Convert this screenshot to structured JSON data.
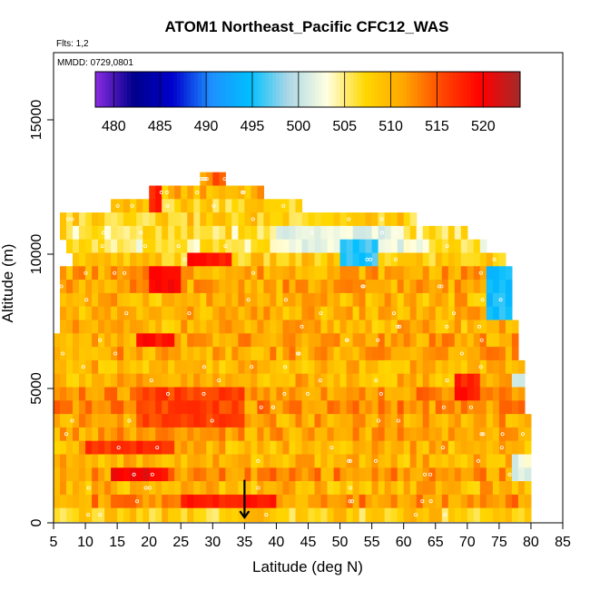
{
  "chart_data": {
    "type": "heatmap",
    "title": "ATOM1 Northeast_Pacific CFC12_WAS",
    "flights_label": "Flts: 1,2",
    "dates_label": "MMDD: 0729,0801",
    "xlabel": "Latitude (deg N)",
    "ylabel": "Altitude (m)",
    "xlim": [
      5,
      85
    ],
    "ylim": [
      0,
      17500
    ],
    "x_ticks": [
      5,
      10,
      15,
      20,
      25,
      30,
      35,
      40,
      45,
      50,
      55,
      60,
      65,
      70,
      75,
      80,
      85
    ],
    "y_ticks": [
      0,
      5000,
      10000,
      15000
    ],
    "colorbar": {
      "ticks": [
        480,
        485,
        490,
        495,
        500,
        505,
        510,
        515,
        520
      ],
      "range": [
        478,
        524
      ],
      "colors": [
        "#8a2be2",
        "#00008b",
        "#0000cd",
        "#1e90ff",
        "#00bfff",
        "#add8e6",
        "#ffffe0",
        "#ffd700",
        "#ffa500",
        "#ff4500",
        "#ff0000",
        "#a52a2a"
      ]
    },
    "marker": {
      "latitude": 35,
      "altitude": 900
    },
    "rows": [
      {
        "alt": 12800,
        "lat": [
          28,
          32
        ],
        "value": 513
      },
      {
        "alt": 12300,
        "lat": [
          20,
          38
        ],
        "value": 510
      },
      {
        "alt": 11800,
        "lat": [
          14,
          44
        ],
        "value": 508
      },
      {
        "alt": 11300,
        "lat": [
          6,
          62
        ],
        "value": 508
      },
      {
        "alt": 10800,
        "lat": [
          6,
          70
        ],
        "value": 506
      },
      {
        "alt": 10300,
        "lat": [
          7,
          73
        ],
        "value": 505
      },
      {
        "alt": 9800,
        "lat": [
          8,
          76
        ],
        "value": 508
      },
      {
        "alt": 9300,
        "lat": [
          6,
          77
        ],
        "value": 511
      },
      {
        "alt": 8800,
        "lat": [
          6,
          77
        ],
        "value": 511
      },
      {
        "alt": 8300,
        "lat": [
          6,
          77
        ],
        "value": 510
      },
      {
        "alt": 7800,
        "lat": [
          6,
          77
        ],
        "value": 510
      },
      {
        "alt": 7300,
        "lat": [
          6,
          78
        ],
        "value": 510
      },
      {
        "alt": 6800,
        "lat": [
          5,
          78
        ],
        "value": 511
      },
      {
        "alt": 6300,
        "lat": [
          5,
          78
        ],
        "value": 511
      },
      {
        "alt": 5800,
        "lat": [
          5,
          79
        ],
        "value": 510
      },
      {
        "alt": 5300,
        "lat": [
          5,
          79
        ],
        "value": 510
      },
      {
        "alt": 4800,
        "lat": [
          5,
          79
        ],
        "value": 512
      },
      {
        "alt": 4300,
        "lat": [
          5,
          79
        ],
        "value": 512
      },
      {
        "alt": 3800,
        "lat": [
          5,
          80
        ],
        "value": 511
      },
      {
        "alt": 3300,
        "lat": [
          5,
          80
        ],
        "value": 511
      },
      {
        "alt": 2800,
        "lat": [
          5,
          80
        ],
        "value": 510
      },
      {
        "alt": 2300,
        "lat": [
          5,
          80
        ],
        "value": 510
      },
      {
        "alt": 1800,
        "lat": [
          5,
          80
        ],
        "value": 512
      },
      {
        "alt": 1300,
        "lat": [
          5,
          80
        ],
        "value": 510
      },
      {
        "alt": 800,
        "lat": [
          5,
          80
        ],
        "value": 512
      },
      {
        "alt": 300,
        "lat": [
          5,
          80
        ],
        "value": 508
      }
    ],
    "hotspots": [
      {
        "lat": [
          26,
          33
        ],
        "alt": [
          9500,
          10100
        ],
        "value": 519
      },
      {
        "lat": [
          20,
          25
        ],
        "alt": [
          8700,
          9600
        ],
        "value": 520
      },
      {
        "lat": [
          18,
          24
        ],
        "alt": [
          6600,
          7200
        ],
        "value": 519
      },
      {
        "lat": [
          18,
          35
        ],
        "alt": [
          3700,
          5000
        ],
        "value": 516
      },
      {
        "lat": [
          10,
          24
        ],
        "alt": [
          2400,
          3000
        ],
        "value": 517
      },
      {
        "lat": [
          14,
          23
        ],
        "alt": [
          1500,
          2100
        ],
        "value": 520
      },
      {
        "lat": [
          25,
          40
        ],
        "alt": [
          600,
          1200
        ],
        "value": 518
      },
      {
        "lat": [
          68,
          72
        ],
        "alt": [
          4800,
          5700
        ],
        "value": 518
      },
      {
        "lat": [
          20,
          22
        ],
        "alt": [
          11800,
          12500
        ],
        "value": 518
      },
      {
        "lat": [
          40,
          60
        ],
        "alt": [
          10000,
          11200
        ],
        "value": 502
      },
      {
        "lat": [
          50,
          56
        ],
        "alt": [
          9700,
          10300
        ],
        "value": 496
      },
      {
        "lat": [
          73,
          77
        ],
        "alt": [
          7500,
          9300
        ],
        "value": 495
      },
      {
        "lat": [
          77,
          80
        ],
        "alt": [
          4900,
          5500
        ],
        "value": 502
      },
      {
        "lat": [
          77,
          80
        ],
        "alt": [
          1800,
          2300
        ],
        "value": 502
      }
    ]
  }
}
